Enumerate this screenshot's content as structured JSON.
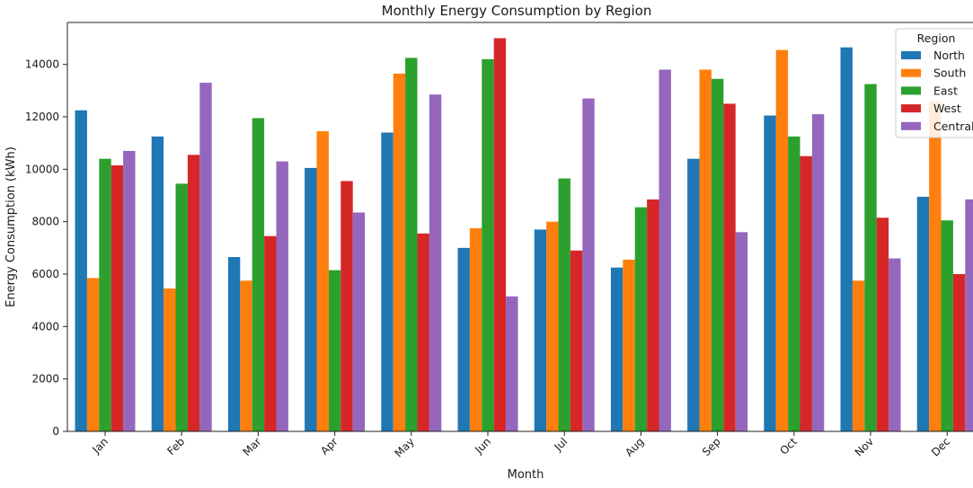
{
  "chart_data": {
    "type": "bar",
    "title": "Monthly Energy Consumption by Region",
    "xlabel": "Month",
    "ylabel": "Energy Consumption (kWh)",
    "ylim": [
      0,
      15600
    ],
    "yticks": [
      0,
      2000,
      4000,
      6000,
      8000,
      10000,
      12000,
      14000
    ],
    "grid": false,
    "legend_title": "Region",
    "legend_position": "top-right",
    "categories": [
      "Jan",
      "Feb",
      "Mar",
      "Apr",
      "May",
      "Jun",
      "Jul",
      "Aug",
      "Sep",
      "Oct",
      "Nov",
      "Dec"
    ],
    "series": [
      {
        "name": "North",
        "color": "#1f77b4",
        "values": [
          12250,
          11250,
          6650,
          10050,
          11400,
          7000,
          7700,
          6250,
          10400,
          12050,
          14650,
          8950
        ]
      },
      {
        "name": "South",
        "color": "#ff7f0e",
        "values": [
          5850,
          5450,
          5750,
          11450,
          13650,
          7750,
          8000,
          6550,
          13800,
          14550,
          5750,
          12600
        ]
      },
      {
        "name": "East",
        "color": "#2ca02c",
        "values": [
          10400,
          9450,
          11950,
          6150,
          14250,
          14200,
          9650,
          8550,
          13450,
          11250,
          13250,
          8050
        ]
      },
      {
        "name": "West",
        "color": "#d62728",
        "values": [
          10150,
          10550,
          7450,
          9550,
          7550,
          15000,
          6900,
          8850,
          12500,
          10500,
          8150,
          6000
        ]
      },
      {
        "name": "Central",
        "color": "#9467bd",
        "values": [
          10700,
          13300,
          10300,
          8350,
          12850,
          5150,
          12700,
          13800,
          7600,
          12100,
          6600,
          8850
        ]
      }
    ]
  }
}
